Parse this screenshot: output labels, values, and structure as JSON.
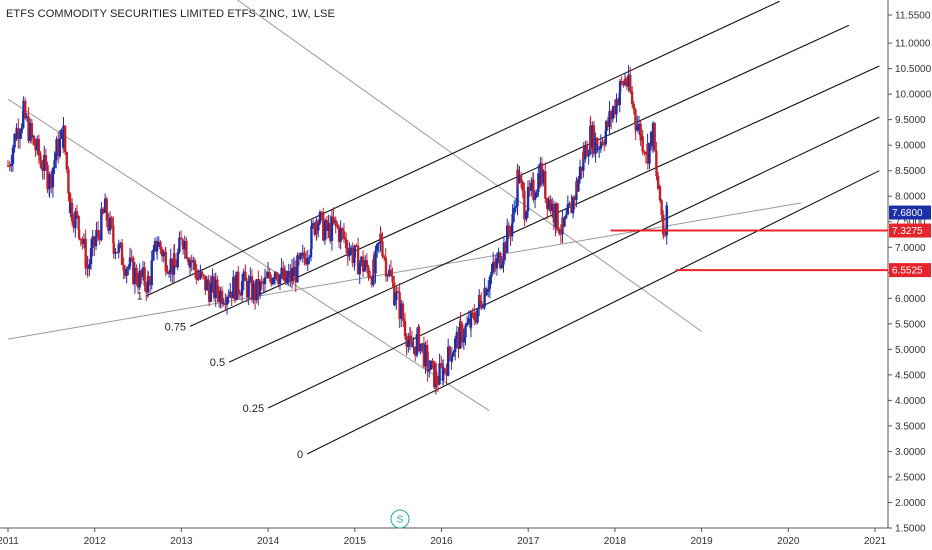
{
  "chart_data": {
    "type": "candlestick",
    "title": "ETFS COMMODITY SECURITIES LIMITED ETFS ZINC, 1W, LSE",
    "y_ticks": [
      "11.5500",
      "11.0000",
      "10.5000",
      "10.0000",
      "9.5000",
      "9.0000",
      "8.5000",
      "8.0000",
      "7.5000",
      "7.0000",
      "6.5000",
      "6.0000",
      "5.5000",
      "5.0000",
      "4.5000",
      "4.0000",
      "3.5000",
      "3.0000",
      "2.5000",
      "2.0000",
      "1.5000"
    ],
    "x_ticks": [
      "2011",
      "2012",
      "2013",
      "2014",
      "2015",
      "2016",
      "2017",
      "2018",
      "2019",
      "2020",
      "2021"
    ],
    "ylim": [
      1.4,
      11.7
    ],
    "xlim": [
      2011.0,
      2021.1
    ],
    "up_color": "#1a2fa8",
    "down_color": "#c0202a",
    "price_series": [
      {
        "t": 2011.0,
        "v": 8.6
      },
      {
        "t": 2011.1,
        "v": 9.3
      },
      {
        "t": 2011.18,
        "v": 9.6
      },
      {
        "t": 2011.28,
        "v": 9.1
      },
      {
        "t": 2011.38,
        "v": 8.7
      },
      {
        "t": 2011.48,
        "v": 8.3
      },
      {
        "t": 2011.56,
        "v": 8.9
      },
      {
        "t": 2011.64,
        "v": 9.2
      },
      {
        "t": 2011.72,
        "v": 7.8
      },
      {
        "t": 2011.82,
        "v": 7.4
      },
      {
        "t": 2011.92,
        "v": 6.6
      },
      {
        "t": 2012.02,
        "v": 7.2
      },
      {
        "t": 2012.12,
        "v": 7.7
      },
      {
        "t": 2012.22,
        "v": 7.1
      },
      {
        "t": 2012.35,
        "v": 6.7
      },
      {
        "t": 2012.5,
        "v": 6.4
      },
      {
        "t": 2012.62,
        "v": 6.3
      },
      {
        "t": 2012.72,
        "v": 7.1
      },
      {
        "t": 2012.82,
        "v": 6.8
      },
      {
        "t": 2012.92,
        "v": 6.6
      },
      {
        "t": 2013.02,
        "v": 7.2
      },
      {
        "t": 2013.1,
        "v": 6.8
      },
      {
        "t": 2013.2,
        "v": 6.4
      },
      {
        "t": 2013.32,
        "v": 6.2
      },
      {
        "t": 2013.45,
        "v": 6.1
      },
      {
        "t": 2013.58,
        "v": 6.2
      },
      {
        "t": 2013.7,
        "v": 6.3
      },
      {
        "t": 2013.85,
        "v": 6.1
      },
      {
        "t": 2013.98,
        "v": 6.3
      },
      {
        "t": 2014.08,
        "v": 6.6
      },
      {
        "t": 2014.2,
        "v": 6.3
      },
      {
        "t": 2014.3,
        "v": 6.5
      },
      {
        "t": 2014.4,
        "v": 6.7
      },
      {
        "t": 2014.5,
        "v": 7.2
      },
      {
        "t": 2014.56,
        "v": 7.6
      },
      {
        "t": 2014.66,
        "v": 7.3
      },
      {
        "t": 2014.78,
        "v": 7.4
      },
      {
        "t": 2014.9,
        "v": 7.1
      },
      {
        "t": 2015.0,
        "v": 6.8
      },
      {
        "t": 2015.12,
        "v": 6.6
      },
      {
        "t": 2015.22,
        "v": 6.5
      },
      {
        "t": 2015.3,
        "v": 7.2
      },
      {
        "t": 2015.36,
        "v": 6.7
      },
      {
        "t": 2015.46,
        "v": 6.1
      },
      {
        "t": 2015.56,
        "v": 5.6
      },
      {
        "t": 2015.64,
        "v": 5.0
      },
      {
        "t": 2015.74,
        "v": 5.2
      },
      {
        "t": 2015.84,
        "v": 4.7
      },
      {
        "t": 2015.94,
        "v": 4.4
      },
      {
        "t": 2016.02,
        "v": 4.6
      },
      {
        "t": 2016.12,
        "v": 5.0
      },
      {
        "t": 2016.22,
        "v": 5.3
      },
      {
        "t": 2016.34,
        "v": 5.5
      },
      {
        "t": 2016.44,
        "v": 5.9
      },
      {
        "t": 2016.52,
        "v": 6.3
      },
      {
        "t": 2016.62,
        "v": 6.6
      },
      {
        "t": 2016.72,
        "v": 7.0
      },
      {
        "t": 2016.82,
        "v": 7.5
      },
      {
        "t": 2016.88,
        "v": 8.4
      },
      {
        "t": 2016.96,
        "v": 7.8
      },
      {
        "t": 2017.06,
        "v": 8.1
      },
      {
        "t": 2017.14,
        "v": 8.5
      },
      {
        "t": 2017.22,
        "v": 8.0
      },
      {
        "t": 2017.32,
        "v": 7.6
      },
      {
        "t": 2017.4,
        "v": 7.3
      },
      {
        "t": 2017.48,
        "v": 7.7
      },
      {
        "t": 2017.56,
        "v": 8.2
      },
      {
        "t": 2017.64,
        "v": 8.8
      },
      {
        "t": 2017.72,
        "v": 9.2
      },
      {
        "t": 2017.8,
        "v": 9.0
      },
      {
        "t": 2017.9,
        "v": 9.3
      },
      {
        "t": 2017.98,
        "v": 9.7
      },
      {
        "t": 2018.06,
        "v": 10.1
      },
      {
        "t": 2018.12,
        "v": 10.3
      },
      {
        "t": 2018.18,
        "v": 10.0
      },
      {
        "t": 2018.24,
        "v": 9.5
      },
      {
        "t": 2018.32,
        "v": 9.1
      },
      {
        "t": 2018.38,
        "v": 8.9
      },
      {
        "t": 2018.44,
        "v": 9.2
      },
      {
        "t": 2018.48,
        "v": 8.4
      },
      {
        "t": 2018.52,
        "v": 7.9
      },
      {
        "t": 2018.56,
        "v": 7.35
      },
      {
        "t": 2018.6,
        "v": 7.68
      }
    ],
    "pitchfork": {
      "levels": [
        {
          "label": "1",
          "start": [
            2012.6,
            6.05
          ],
          "end": [
            2019.9,
            11.82
          ]
        },
        {
          "label": "0.75",
          "start": [
            2013.1,
            5.45
          ],
          "end": [
            2020.7,
            11.35
          ]
        },
        {
          "label": "0.5",
          "start": [
            2013.55,
            4.75
          ],
          "end": [
            2021.05,
            10.55
          ]
        },
        {
          "label": "0.25",
          "start": [
            2014.0,
            3.85
          ],
          "end": [
            2021.05,
            9.55
          ]
        },
        {
          "label": "0",
          "start": [
            2014.45,
            2.95
          ],
          "end": [
            2021.05,
            8.5
          ]
        }
      ]
    },
    "gray_lines": [
      {
        "start": [
          2011.0,
          9.9
        ],
        "end": [
          2016.55,
          3.8
        ]
      },
      {
        "start": [
          2013.6,
          11.9
        ],
        "end": [
          2019.0,
          5.35
        ]
      },
      {
        "start": [
          2011.0,
          5.2
        ],
        "end": [
          2020.15,
          7.87
        ]
      }
    ],
    "horizontal_levels": [
      {
        "label": "7.3275",
        "value": 7.3275,
        "x_start": 2017.95,
        "x_end": 2021.05
      },
      {
        "label": "6.5525",
        "value": 6.5525,
        "x_start": 2018.7,
        "x_end": 2021.05
      }
    ],
    "last_price": {
      "label": "7.6800",
      "value": 7.68
    }
  },
  "badge": {
    "label": "S",
    "color": "#26a69a"
  }
}
